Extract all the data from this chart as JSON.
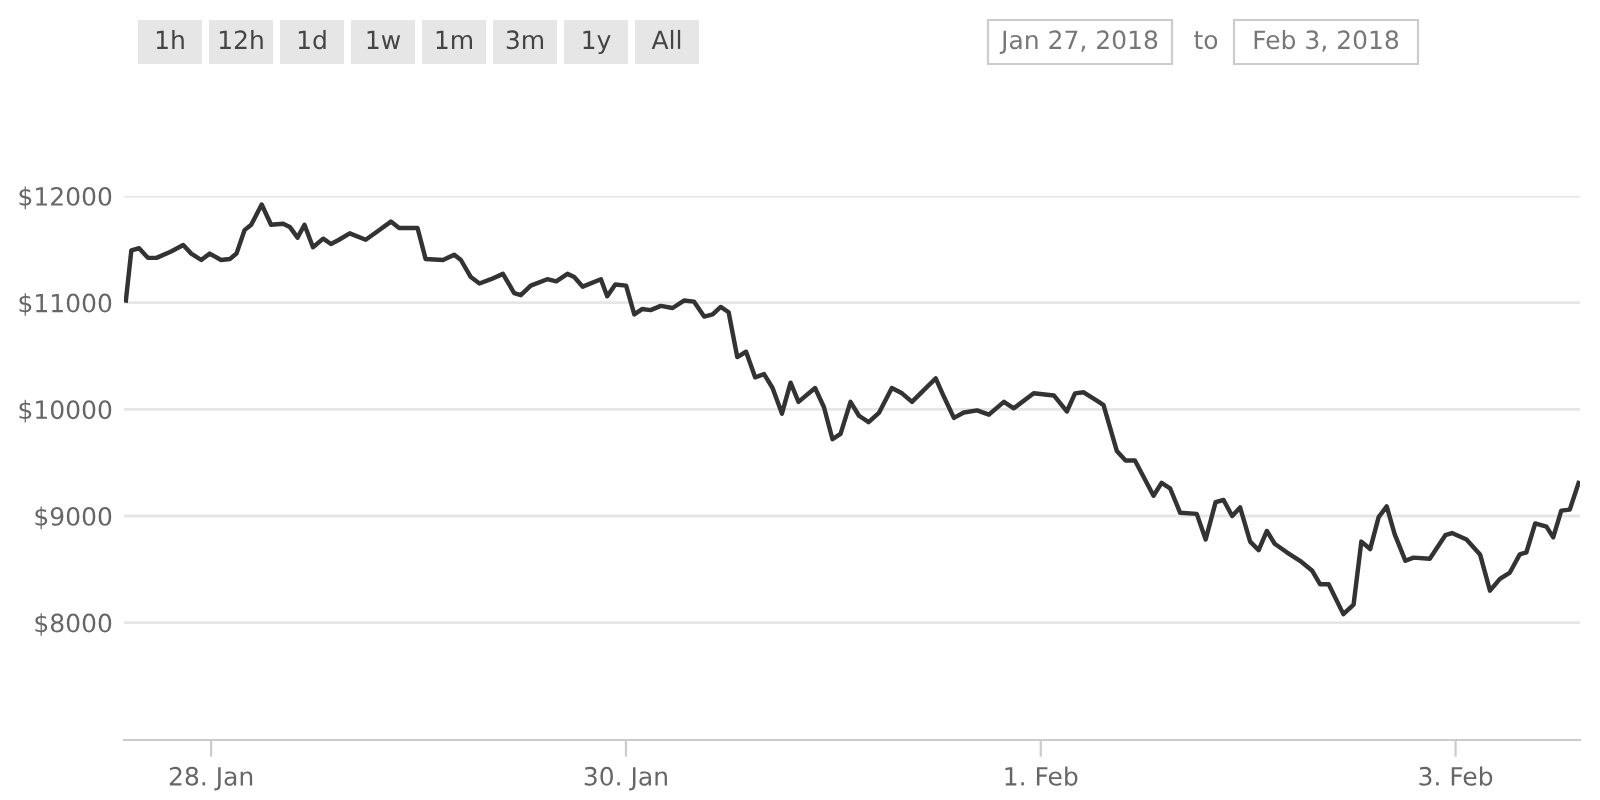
{
  "chart_data": {
    "type": "line",
    "annotations": [
      "1h",
      "12h",
      "1d",
      "1w",
      "1m",
      "3m",
      "1y",
      "All",
      "Jan 27, 2018",
      "to",
      "Feb 3, 2018"
    ],
    "series": [
      {
        "color": "#333333",
        "x": [
          "2018-01-27T14:08",
          "2018-01-27T14:46",
          "2018-01-27T15:40",
          "2018-01-27T16:41",
          "2018-01-27T17:41",
          "2018-01-27T19:22",
          "2018-01-27T20:46",
          "2018-01-27T21:42",
          "2018-01-27T22:51",
          "2018-01-27T23:50",
          "2018-01-28T01:09",
          "2018-01-28T02:10",
          "2018-01-28T02:56",
          "2018-01-28T03:52",
          "2018-01-28T04:38",
          "2018-01-28T05:51",
          "2018-01-28T06:56",
          "2018-01-28T08:20",
          "2018-01-28T09:06",
          "2018-01-28T10:00",
          "2018-01-28T10:48",
          "2018-01-28T11:47",
          "2018-01-28T12:58",
          "2018-01-28T13:52",
          "2018-01-28T14:48",
          "2018-01-28T16:02",
          "2018-01-28T17:53",
          "2018-01-28T19:16",
          "2018-01-28T20:48",
          "2018-01-28T21:45",
          "2018-01-28T23:53",
          "2018-01-29T00:49",
          "2018-01-29T02:50",
          "2018-01-29T04:08",
          "2018-01-29T04:54",
          "2018-01-29T06:03",
          "2018-01-29T07:03",
          "2018-01-29T08:23",
          "2018-01-29T09:46",
          "2018-01-29T11:04",
          "2018-01-29T11:50",
          "2018-01-29T12:59",
          "2018-01-29T14:54",
          "2018-01-29T15:56",
          "2018-01-29T17:14",
          "2018-01-29T18:01",
          "2018-01-29T19:00",
          "2018-01-29T21:06",
          "2018-01-29T21:50",
          "2018-01-29T22:46",
          "2018-01-30T00:01",
          "2018-01-30T00:58",
          "2018-01-30T01:52",
          "2018-01-30T02:51",
          "2018-01-30T04:02",
          "2018-01-30T05:24",
          "2018-01-30T06:43",
          "2018-01-30T07:52",
          "2018-01-30T09:03",
          "2018-01-30T10:02",
          "2018-01-30T10:58",
          "2018-01-30T11:53",
          "2018-01-30T12:53",
          "2018-01-30T13:54",
          "2018-01-30T14:57",
          "2018-01-30T15:59",
          "2018-01-30T16:58",
          "2018-01-30T18:03",
          "2018-01-30T19:03",
          "2018-01-30T19:58",
          "2018-01-30T21:53",
          "2018-01-30T22:55",
          "2018-01-30T23:54",
          "2018-01-31T00:50",
          "2018-01-31T01:59",
          "2018-01-31T02:58",
          "2018-01-31T04:05",
          "2018-01-31T05:18",
          "2018-01-31T06:46",
          "2018-01-31T07:57",
          "2018-01-31T09:06",
          "2018-01-31T10:28",
          "2018-01-31T11:51",
          "2018-01-31T12:47",
          "2018-01-31T13:57",
          "2018-01-31T15:06",
          "2018-01-31T16:38",
          "2018-01-31T18:00",
          "2018-01-31T19:44",
          "2018-01-31T20:53",
          "2018-01-31T23:11",
          "2018-02-01T01:31",
          "2018-02-01T03:01",
          "2018-02-01T03:58",
          "2018-02-01T04:58",
          "2018-02-01T06:43",
          "2018-02-01T07:16",
          "2018-02-01T08:48",
          "2018-02-01T09:49",
          "2018-02-01T10:54",
          "2018-02-01T13:03",
          "2018-02-01T13:59",
          "2018-02-01T14:58",
          "2018-02-01T16:08",
          "2018-02-01T18:03",
          "2018-02-01T19:05",
          "2018-02-01T20:14",
          "2018-02-01T21:09",
          "2018-02-01T22:09",
          "2018-02-01T23:04",
          "2018-02-02T00:14",
          "2018-02-02T01:13",
          "2018-02-02T02:10",
          "2018-02-02T03:04",
          "2018-02-02T04:28",
          "2018-02-02T06:00",
          "2018-02-02T07:23",
          "2018-02-02T08:20",
          "2018-02-02T09:19",
          "2018-02-02T11:01",
          "2018-02-02T12:12",
          "2018-02-02T13:06",
          "2018-02-02T14:07",
          "2018-02-02T15:06",
          "2018-02-02T16:02",
          "2018-02-02T16:57",
          "2018-02-02T18:12",
          "2018-02-02T19:08",
          "2018-02-02T21:01",
          "2018-02-02T22:49",
          "2018-02-02T23:35",
          "2018-02-03T01:16",
          "2018-02-03T02:50",
          "2018-02-03T03:59",
          "2018-02-03T05:08",
          "2018-02-03T06:17",
          "2018-02-03T07:26",
          "2018-02-03T08:12",
          "2018-02-03T09:13",
          "2018-02-03T10:31",
          "2018-02-03T11:18",
          "2018-02-03T12:14",
          "2018-02-03T13:13",
          "2018-02-03T14:14"
        ],
        "values": [
          11020,
          11490,
          11510,
          11420,
          11420,
          11480,
          11540,
          11460,
          11400,
          11460,
          11400,
          11410,
          11460,
          11680,
          11730,
          11920,
          11730,
          11740,
          11710,
          11610,
          11730,
          11520,
          11600,
          11550,
          11590,
          11650,
          11590,
          11670,
          11760,
          11700,
          11700,
          11410,
          11400,
          11450,
          11400,
          11240,
          11180,
          11220,
          11270,
          11090,
          11070,
          11160,
          11220,
          11200,
          11270,
          11240,
          11150,
          11220,
          11060,
          11170,
          11160,
          10890,
          10940,
          10930,
          10970,
          10950,
          11020,
          11010,
          10870,
          10890,
          10960,
          10910,
          10490,
          10540,
          10300,
          10330,
          10200,
          9960,
          10250,
          10070,
          10200,
          10020,
          9720,
          9770,
          10070,
          9940,
          9880,
          9970,
          10200,
          10150,
          10070,
          10180,
          10290,
          10120,
          9920,
          9970,
          9990,
          9950,
          10070,
          10010,
          10150,
          10130,
          9980,
          10150,
          10160,
          10070,
          10040,
          9610,
          9520,
          9520,
          9190,
          9310,
          9260,
          9030,
          9020,
          8780,
          9130,
          9150,
          9000,
          9080,
          8760,
          8680,
          8860,
          8740,
          8660,
          8580,
          8490,
          8360,
          8360,
          8080,
          8170,
          8760,
          8690,
          8990,
          9090,
          8830,
          8580,
          8610,
          8600,
          8820,
          8840,
          8780,
          8640,
          8300,
          8410,
          8470,
          8640,
          8660,
          8930,
          8900,
          8800,
          9050,
          9060,
          9310
        ]
      }
    ],
    "xlim": [
      "2018-01-27T13:55",
      "2018-02-03T14:24"
    ],
    "xticks": [
      {
        "value": "2018-01-28",
        "label": "28. Jan"
      },
      {
        "value": "2018-01-30",
        "label": "30. Jan"
      },
      {
        "value": "2018-02-01",
        "label": "1. Feb"
      },
      {
        "value": "2018-02-03",
        "label": "3. Feb"
      }
    ],
    "ylim": [
      6900,
      12000
    ],
    "yticks": [
      {
        "value": 8000,
        "label": "$8000"
      },
      {
        "value": 9000,
        "label": "$9000"
      },
      {
        "value": 10000,
        "label": "$10000"
      },
      {
        "value": 11000,
        "label": "$11000"
      },
      {
        "value": 12000,
        "label": "$12000"
      }
    ],
    "grid": "y",
    "marker": "none",
    "line_style": "solid"
  }
}
